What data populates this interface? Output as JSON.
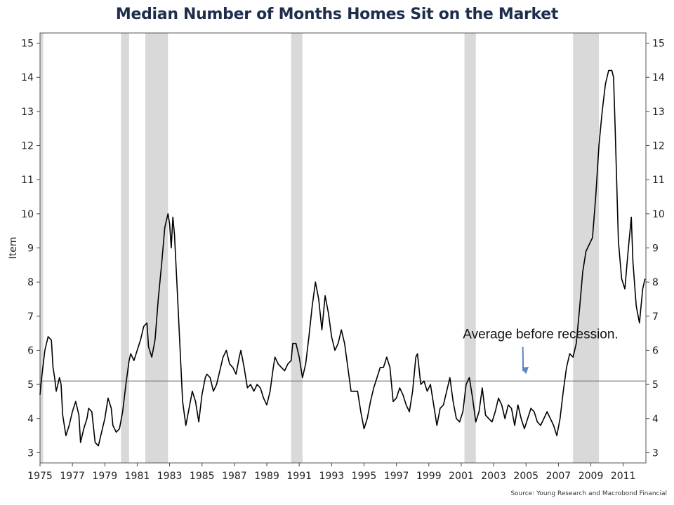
{
  "source": "Source: Young Research and Macrobond Financial",
  "colors": {
    "line": "#000000",
    "recession": "#d9d9d9",
    "average": "#808080",
    "arrow": "#5b86c5",
    "title": "#1f2d4d"
  },
  "chart_data": {
    "type": "line",
    "title": "Median Number of Months Homes Sit on the Market",
    "ylabel": "Item",
    "xlabel": "",
    "xlim": [
      1975,
      2012.4
    ],
    "ylim": [
      2.7,
      15.3
    ],
    "x_ticks": [
      "1975",
      "1977",
      "1979",
      "1981",
      "1983",
      "1985",
      "1987",
      "1989",
      "1991",
      "1993",
      "1995",
      "1997",
      "1999",
      "2001",
      "2003",
      "2005",
      "2007",
      "2009",
      "2011"
    ],
    "y_ticks": [
      3,
      4,
      5,
      6,
      7,
      8,
      9,
      10,
      11,
      12,
      13,
      14,
      15
    ],
    "average_line": 5.1,
    "annotation": {
      "text": "Average before recession.",
      "x": 2001.1,
      "y": 6.35,
      "arrow_to": [
        2005.0,
        5.3
      ]
    },
    "recessions": [
      [
        1975.0,
        1975.2
      ],
      [
        1980.0,
        1980.5
      ],
      [
        1981.5,
        1982.9
      ],
      [
        1990.5,
        1991.2
      ],
      [
        2001.2,
        2001.9
      ],
      [
        2007.9,
        2009.5
      ]
    ],
    "series": [
      {
        "values": [
          [
            1975.0,
            4.7
          ],
          [
            1975.1,
            5.2
          ],
          [
            1975.3,
            6.0
          ],
          [
            1975.5,
            6.4
          ],
          [
            1975.7,
            6.3
          ],
          [
            1975.8,
            5.5
          ],
          [
            1975.9,
            5.2
          ],
          [
            1976.0,
            4.8
          ],
          [
            1976.2,
            5.2
          ],
          [
            1976.3,
            5.0
          ],
          [
            1976.4,
            4.1
          ],
          [
            1976.6,
            3.5
          ],
          [
            1976.8,
            3.8
          ],
          [
            1977.0,
            4.2
          ],
          [
            1977.2,
            4.5
          ],
          [
            1977.4,
            4.1
          ],
          [
            1977.5,
            3.3
          ],
          [
            1977.7,
            3.7
          ],
          [
            1977.9,
            4.0
          ],
          [
            1978.0,
            4.3
          ],
          [
            1978.2,
            4.2
          ],
          [
            1978.4,
            3.3
          ],
          [
            1978.6,
            3.2
          ],
          [
            1978.8,
            3.6
          ],
          [
            1979.0,
            4.0
          ],
          [
            1979.2,
            4.6
          ],
          [
            1979.4,
            4.3
          ],
          [
            1979.5,
            3.8
          ],
          [
            1979.7,
            3.6
          ],
          [
            1979.9,
            3.7
          ],
          [
            1980.1,
            4.2
          ],
          [
            1980.3,
            5.0
          ],
          [
            1980.5,
            5.7
          ],
          [
            1980.6,
            5.9
          ],
          [
            1980.8,
            5.7
          ],
          [
            1981.0,
            6.0
          ],
          [
            1981.2,
            6.3
          ],
          [
            1981.4,
            6.7
          ],
          [
            1981.6,
            6.8
          ],
          [
            1981.7,
            6.1
          ],
          [
            1981.9,
            5.8
          ],
          [
            1982.1,
            6.3
          ],
          [
            1982.3,
            7.5
          ],
          [
            1982.5,
            8.5
          ],
          [
            1982.7,
            9.6
          ],
          [
            1982.9,
            10.0
          ],
          [
            1983.0,
            9.7
          ],
          [
            1983.1,
            9.0
          ],
          [
            1983.2,
            9.9
          ],
          [
            1983.3,
            9.4
          ],
          [
            1983.5,
            7.5
          ],
          [
            1983.6,
            6.5
          ],
          [
            1983.8,
            4.5
          ],
          [
            1984.0,
            3.8
          ],
          [
            1984.2,
            4.3
          ],
          [
            1984.4,
            4.8
          ],
          [
            1984.6,
            4.5
          ],
          [
            1984.8,
            3.9
          ],
          [
            1985.0,
            4.7
          ],
          [
            1985.2,
            5.2
          ],
          [
            1985.3,
            5.3
          ],
          [
            1985.5,
            5.2
          ],
          [
            1985.7,
            4.8
          ],
          [
            1985.9,
            5.0
          ],
          [
            1986.1,
            5.4
          ],
          [
            1986.3,
            5.8
          ],
          [
            1986.5,
            6.0
          ],
          [
            1986.7,
            5.6
          ],
          [
            1986.9,
            5.5
          ],
          [
            1987.1,
            5.3
          ],
          [
            1987.3,
            5.8
          ],
          [
            1987.4,
            6.0
          ],
          [
            1987.6,
            5.5
          ],
          [
            1987.8,
            4.9
          ],
          [
            1988.0,
            5.0
          ],
          [
            1988.2,
            4.8
          ],
          [
            1988.4,
            5.0
          ],
          [
            1988.6,
            4.9
          ],
          [
            1988.8,
            4.6
          ],
          [
            1989.0,
            4.4
          ],
          [
            1989.2,
            4.8
          ],
          [
            1989.4,
            5.5
          ],
          [
            1989.5,
            5.8
          ],
          [
            1989.7,
            5.6
          ],
          [
            1989.9,
            5.5
          ],
          [
            1990.1,
            5.4
          ],
          [
            1990.3,
            5.6
          ],
          [
            1990.5,
            5.7
          ],
          [
            1990.6,
            6.2
          ],
          [
            1990.8,
            6.2
          ],
          [
            1991.0,
            5.8
          ],
          [
            1991.2,
            5.2
          ],
          [
            1991.4,
            5.6
          ],
          [
            1991.6,
            6.4
          ],
          [
            1991.8,
            7.3
          ],
          [
            1992.0,
            8.0
          ],
          [
            1992.2,
            7.5
          ],
          [
            1992.4,
            6.6
          ],
          [
            1992.6,
            7.6
          ],
          [
            1992.8,
            7.1
          ],
          [
            1993.0,
            6.4
          ],
          [
            1993.2,
            6.0
          ],
          [
            1993.4,
            6.2
          ],
          [
            1993.6,
            6.6
          ],
          [
            1993.8,
            6.2
          ],
          [
            1994.0,
            5.5
          ],
          [
            1994.2,
            4.8
          ],
          [
            1994.4,
            4.8
          ],
          [
            1994.6,
            4.8
          ],
          [
            1994.8,
            4.2
          ],
          [
            1995.0,
            3.7
          ],
          [
            1995.2,
            4.0
          ],
          [
            1995.4,
            4.5
          ],
          [
            1995.6,
            4.9
          ],
          [
            1995.8,
            5.2
          ],
          [
            1996.0,
            5.5
          ],
          [
            1996.2,
            5.5
          ],
          [
            1996.4,
            5.8
          ],
          [
            1996.6,
            5.5
          ],
          [
            1996.8,
            4.5
          ],
          [
            1997.0,
            4.6
          ],
          [
            1997.2,
            4.9
          ],
          [
            1997.4,
            4.7
          ],
          [
            1997.6,
            4.4
          ],
          [
            1997.8,
            4.2
          ],
          [
            1998.0,
            4.8
          ],
          [
            1998.2,
            5.8
          ],
          [
            1998.3,
            5.9
          ],
          [
            1998.5,
            5.0
          ],
          [
            1998.7,
            5.1
          ],
          [
            1998.9,
            4.8
          ],
          [
            1999.1,
            5.0
          ],
          [
            1999.3,
            4.4
          ],
          [
            1999.5,
            3.8
          ],
          [
            1999.7,
            4.3
          ],
          [
            1999.9,
            4.4
          ],
          [
            2000.1,
            4.8
          ],
          [
            2000.3,
            5.2
          ],
          [
            2000.5,
            4.5
          ],
          [
            2000.7,
            4.0
          ],
          [
            2000.9,
            3.9
          ],
          [
            2001.1,
            4.2
          ],
          [
            2001.3,
            5.0
          ],
          [
            2001.5,
            5.2
          ],
          [
            2001.7,
            4.6
          ],
          [
            2001.9,
            3.9
          ],
          [
            2002.1,
            4.2
          ],
          [
            2002.3,
            4.9
          ],
          [
            2002.5,
            4.1
          ],
          [
            2002.7,
            4.0
          ],
          [
            2002.9,
            3.9
          ],
          [
            2003.1,
            4.2
          ],
          [
            2003.3,
            4.6
          ],
          [
            2003.5,
            4.4
          ],
          [
            2003.7,
            4.0
          ],
          [
            2003.9,
            4.4
          ],
          [
            2004.1,
            4.3
          ],
          [
            2004.3,
            3.8
          ],
          [
            2004.5,
            4.4
          ],
          [
            2004.7,
            4.0
          ],
          [
            2004.9,
            3.7
          ],
          [
            2005.1,
            4.0
          ],
          [
            2005.3,
            4.3
          ],
          [
            2005.5,
            4.2
          ],
          [
            2005.7,
            3.9
          ],
          [
            2005.9,
            3.8
          ],
          [
            2006.1,
            4.0
          ],
          [
            2006.3,
            4.2
          ],
          [
            2006.5,
            4.0
          ],
          [
            2006.7,
            3.8
          ],
          [
            2006.9,
            3.5
          ],
          [
            2007.1,
            4.0
          ],
          [
            2007.3,
            4.8
          ],
          [
            2007.5,
            5.5
          ],
          [
            2007.7,
            5.9
          ],
          [
            2007.9,
            5.8
          ],
          [
            2008.1,
            6.2
          ],
          [
            2008.3,
            7.2
          ],
          [
            2008.5,
            8.3
          ],
          [
            2008.7,
            8.9
          ],
          [
            2008.9,
            9.1
          ],
          [
            2009.1,
            9.3
          ],
          [
            2009.3,
            10.5
          ],
          [
            2009.5,
            12.0
          ],
          [
            2009.7,
            13.0
          ],
          [
            2009.9,
            13.8
          ],
          [
            2010.1,
            14.2
          ],
          [
            2010.3,
            14.2
          ],
          [
            2010.4,
            14.0
          ],
          [
            2010.5,
            12.5
          ],
          [
            2010.7,
            9.2
          ],
          [
            2010.9,
            8.1
          ],
          [
            2011.1,
            7.8
          ],
          [
            2011.3,
            8.9
          ],
          [
            2011.5,
            9.9
          ],
          [
            2011.6,
            8.6
          ],
          [
            2011.8,
            7.3
          ],
          [
            2012.0,
            6.8
          ],
          [
            2012.2,
            7.8
          ],
          [
            2012.35,
            8.1
          ]
        ]
      }
    ]
  }
}
